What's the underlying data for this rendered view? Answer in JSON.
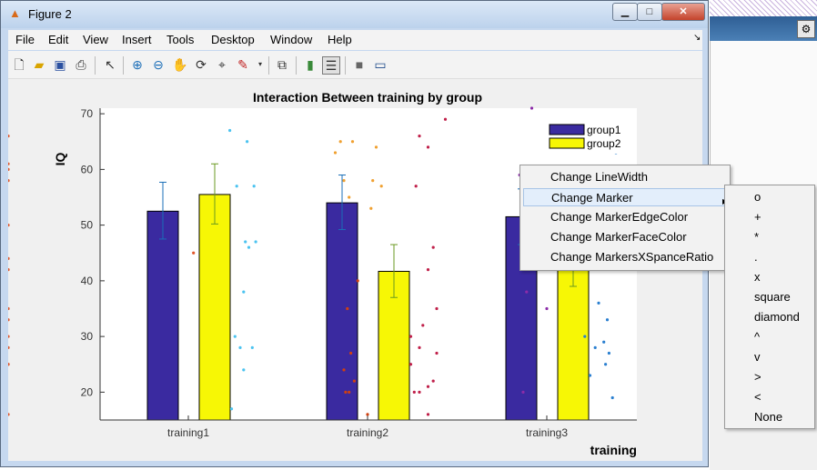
{
  "window": {
    "title": "Figure 2",
    "title_icon": "matlab-icon"
  },
  "menubar": [
    "File",
    "Edit",
    "View",
    "Insert",
    "Tools",
    "Desktop",
    "Window",
    "Help"
  ],
  "toolbar_icons": [
    "new-figure-icon",
    "open-icon",
    "save-icon",
    "print-icon",
    "pointer-icon",
    "zoom-in-icon",
    "zoom-out-icon",
    "pan-icon",
    "rotate-icon",
    "data-cursor-icon",
    "brush-icon",
    "link-icon",
    "colorbar-icon",
    "legend-icon",
    "hide-plot-tools-icon",
    "show-plot-tools-icon"
  ],
  "chart_data": {
    "type": "bar",
    "title": "Interaction Between training by group",
    "xlabel": "training",
    "ylabel": "IQ",
    "categories": [
      "training1",
      "training2",
      "training3"
    ],
    "ylim": [
      15,
      71
    ],
    "yticks": [
      20,
      30,
      40,
      50,
      60,
      70
    ],
    "legend_placement": "top-right",
    "series": [
      {
        "name": "group1",
        "color": "#3a2aa0",
        "values": [
          52.5,
          54,
          51.5
        ],
        "err_low": [
          47.5,
          49.2,
          46.5
        ],
        "err_high": [
          57.7,
          59,
          56.5
        ]
      },
      {
        "name": "group2",
        "color": "#f7f705",
        "values": [
          55.5,
          41.7,
          44
        ],
        "err_low": [
          50.2,
          37,
          39
        ],
        "err_high": [
          61,
          46.5,
          49
        ]
      }
    ],
    "scatter": [
      {
        "color": "#e0552a",
        "x": 1,
        "dx": [
          -0.15,
          -0.1,
          -0.05,
          -0.12,
          -0.08,
          0.03,
          -0.13,
          -0.06,
          -0.1,
          -0.02,
          -0.14,
          -0.07,
          -0.11,
          -0.04,
          -0.09
        ],
        "y": [
          66,
          61,
          60,
          58,
          50,
          45,
          44,
          42,
          35,
          33,
          30,
          28,
          25,
          25,
          16
        ]
      },
      {
        "color": "#4bc3f0",
        "x": 1.3,
        "dx": [
          -0.06,
          0.04,
          -0.02,
          0.08,
          0.03,
          0.09,
          0.05,
          0.02,
          -0.03,
          0.07,
          0.0,
          0.02,
          -0.05
        ],
        "y": [
          67,
          65,
          57,
          57,
          47,
          47,
          46,
          38,
          30,
          28,
          28,
          24,
          17
        ]
      },
      {
        "color": "#f0a030",
        "x": 2,
        "dx": [
          -0.12,
          -0.05,
          0.05,
          -0.15,
          -0.1,
          0.03,
          0.08,
          -0.07,
          0.02
        ],
        "y": [
          65,
          65,
          64,
          63,
          58,
          58,
          57,
          55,
          53
        ]
      },
      {
        "color": "#d04010",
        "x": 2,
        "dx": [
          -0.02,
          -0.08,
          -0.06,
          -0.1,
          -0.04,
          -0.09,
          0.0,
          -0.07
        ],
        "y": [
          40,
          35,
          27,
          24,
          22,
          20,
          16,
          20
        ]
      },
      {
        "color": "#c0204a",
        "x": 2.3,
        "dx": [
          0.15,
          0.0,
          0.05,
          -0.02,
          0.08,
          0.05,
          0.1,
          0.02,
          -0.05,
          0.0,
          0.1,
          -0.05,
          0.08,
          0.05,
          0.0,
          -0.03,
          0.05
        ],
        "y": [
          69,
          66,
          64,
          57,
          46,
          42,
          35,
          32,
          30,
          28,
          27,
          25,
          22,
          21,
          20,
          20,
          16
        ]
      },
      {
        "color": "#8c2ca8",
        "x": 3,
        "dx": [
          -0.05,
          0.05,
          0.12,
          0.02,
          -0.12,
          -0.02,
          0.08,
          -0.08,
          0.0,
          -0.1
        ],
        "y": [
          71,
          68,
          67,
          64,
          59,
          57,
          56,
          38,
          35,
          20
        ]
      },
      {
        "color": "#2a7fd0",
        "x": 3.3,
        "dx": [
          0.1,
          0.0,
          0.05,
          -0.08,
          0.03,
          -0.02,
          0.06,
          0.04,
          -0.05,
          0.08
        ],
        "y": [
          63,
          36,
          33,
          30,
          29,
          28,
          27,
          25,
          23,
          19
        ]
      }
    ]
  },
  "context_menu": {
    "items": [
      "Change LineWidth",
      "Change Marker",
      "Change MarkerEdgeColor",
      "Change MarkerFaceColor",
      "Change MarkersXSpanceRatio"
    ],
    "selected_index": 1
  },
  "submenu": {
    "items": [
      "o",
      "+",
      "*",
      ".",
      "x",
      "square",
      "diamond",
      "^",
      "v",
      ">",
      "<",
      "None"
    ]
  },
  "background_app": {
    "button_icon": "tool-icon"
  }
}
